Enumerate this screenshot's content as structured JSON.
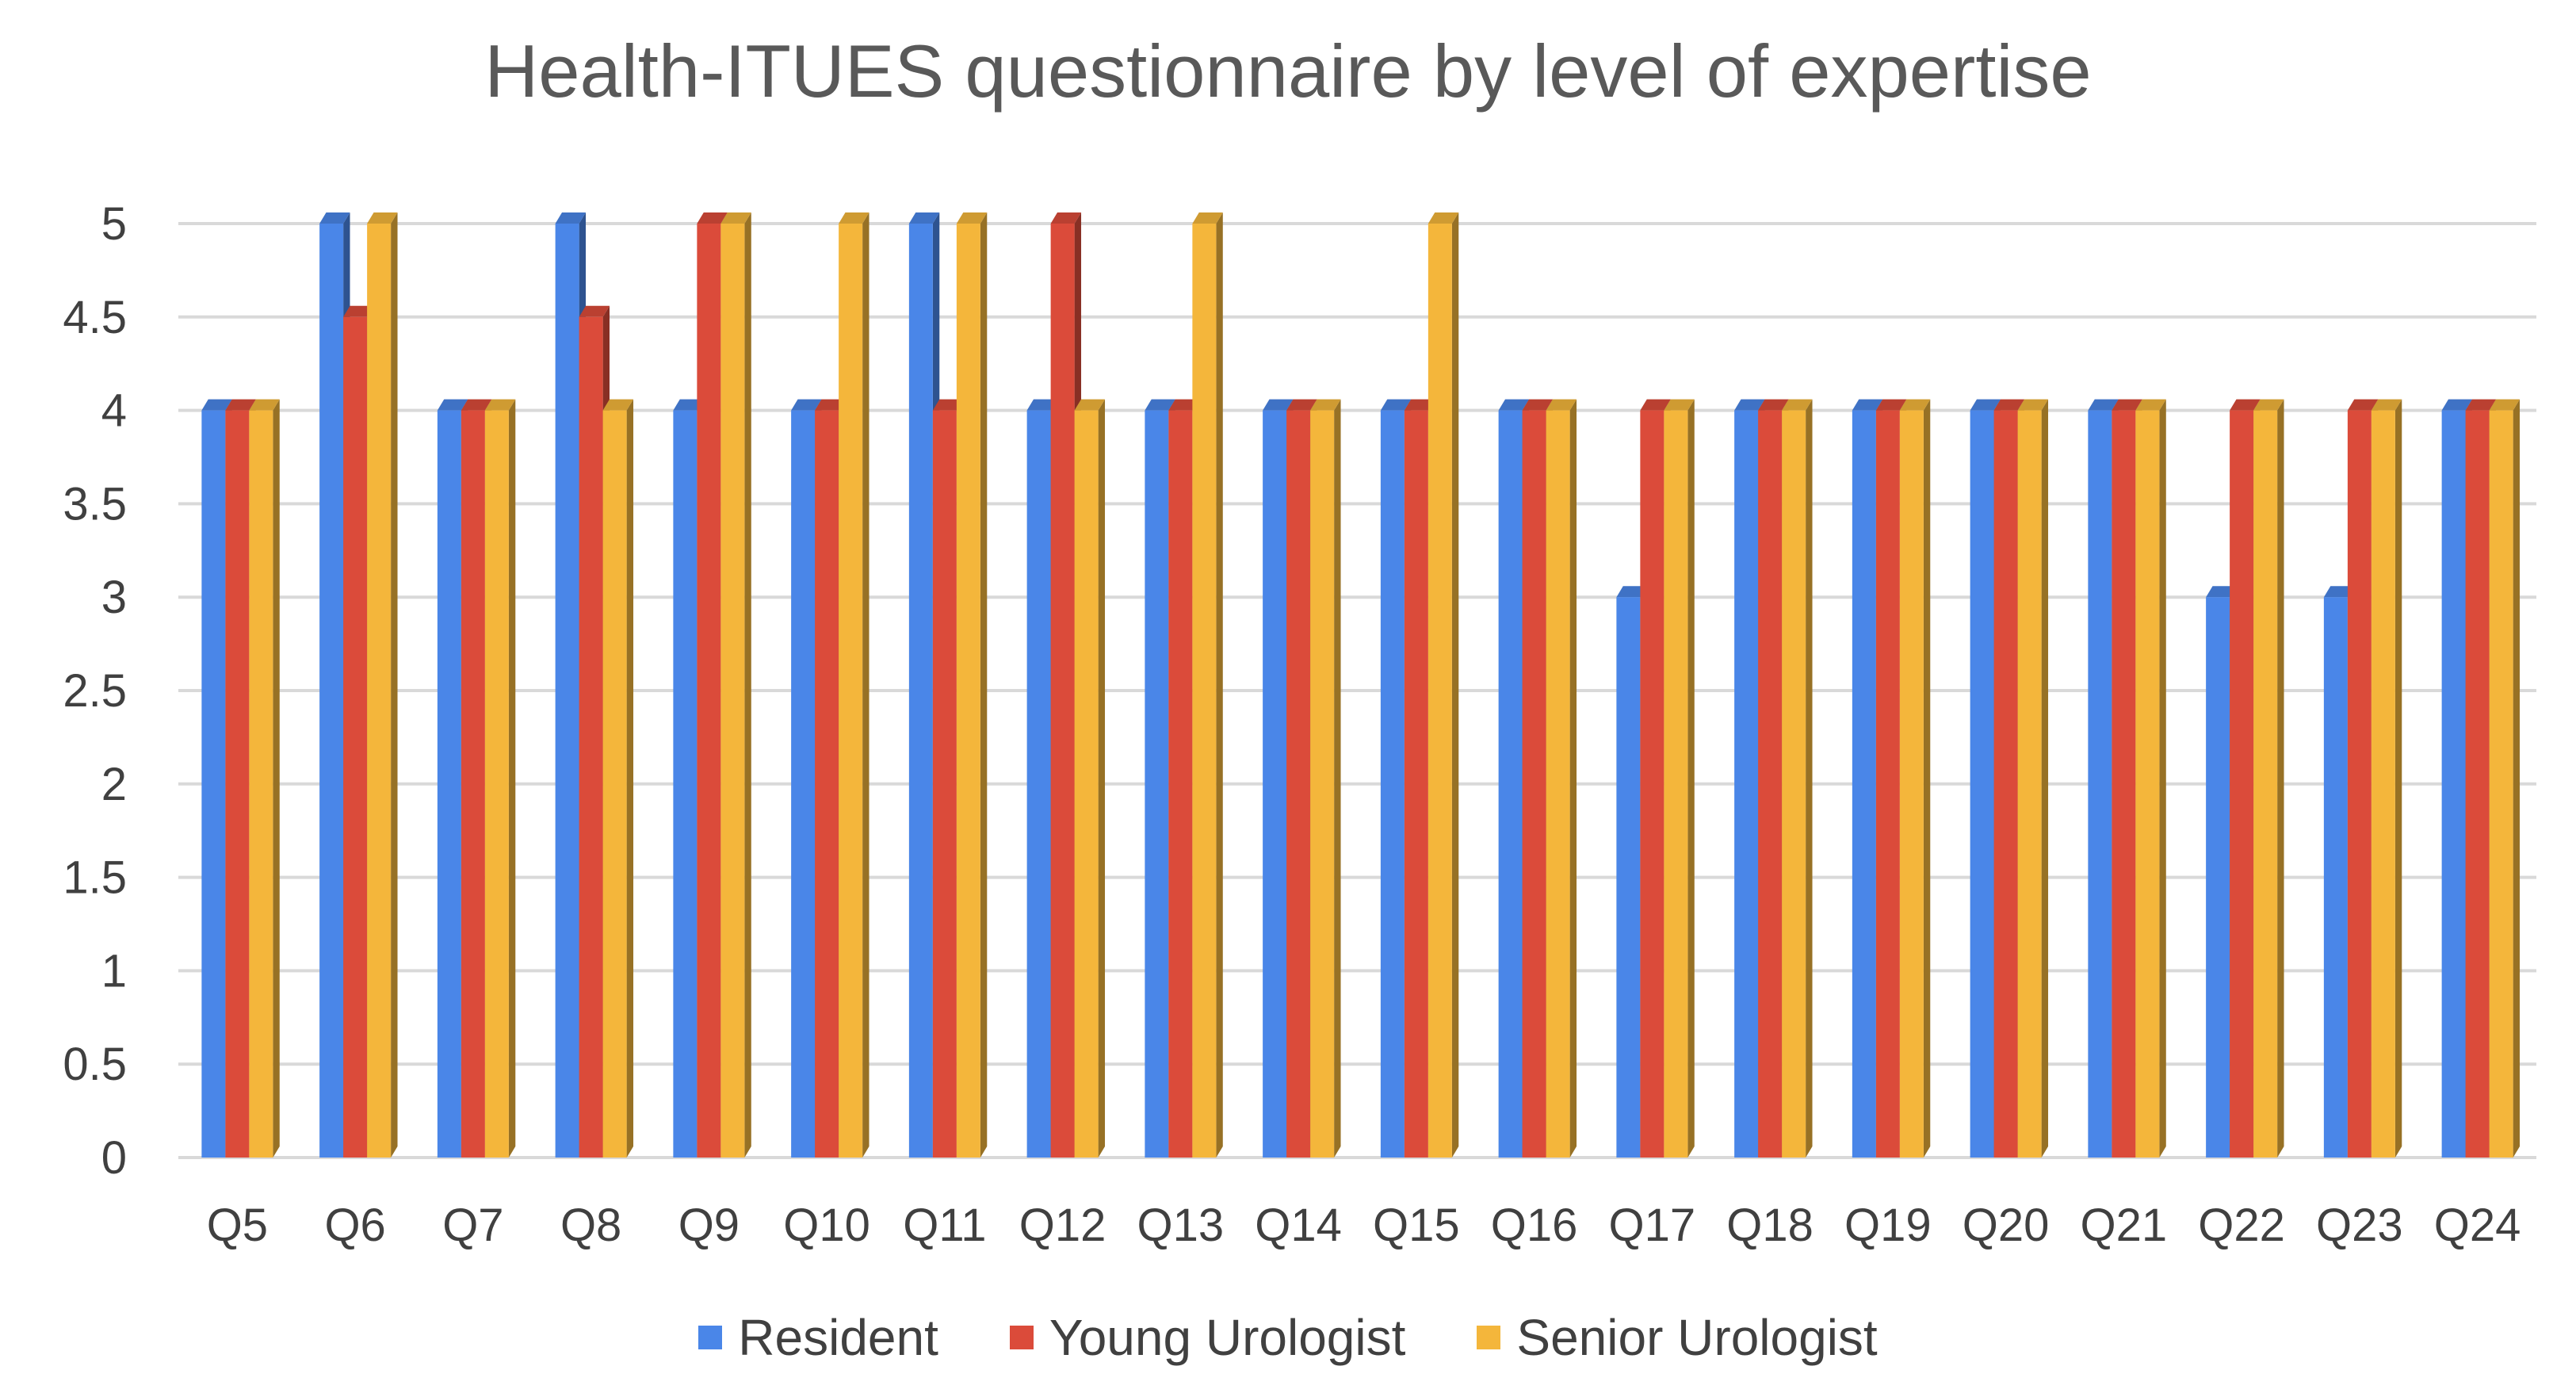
{
  "chart_data": {
    "type": "bar",
    "title": "Health-ITUES questionnaire by level of expertise",
    "xlabel": "",
    "ylabel": "",
    "ylim": [
      0,
      5
    ],
    "yticks": [
      "0",
      "0.5",
      "1",
      "1.5",
      "2",
      "2.5",
      "3",
      "3.5",
      "4",
      "4.5",
      "5"
    ],
    "grid": true,
    "legend_position": "bottom",
    "categories": [
      "Q5",
      "Q6",
      "Q7",
      "Q8",
      "Q9",
      "Q10",
      "Q11",
      "Q12",
      "Q13",
      "Q14",
      "Q15",
      "Q16",
      "Q17",
      "Q18",
      "Q19",
      "Q20",
      "Q21",
      "Q22",
      "Q23",
      "Q24"
    ],
    "series": [
      {
        "name": "Resident",
        "color": "#4A86E8",
        "values": [
          4,
          5,
          4,
          5,
          4,
          4,
          5,
          4,
          4,
          4,
          4,
          4,
          3,
          4,
          4,
          4,
          4,
          3,
          3,
          4
        ]
      },
      {
        "name": "Young Urologist",
        "color": "#DB4B3A",
        "values": [
          4,
          4.5,
          4,
          4.5,
          5,
          4,
          4,
          5,
          4,
          4,
          4,
          4,
          4,
          4,
          4,
          4,
          4,
          4,
          4,
          4
        ]
      },
      {
        "name": "Senior Urologist",
        "color": "#F4B63B",
        "values": [
          4,
          5,
          4,
          4,
          5,
          5,
          5,
          4,
          5,
          4,
          5,
          4,
          4,
          4,
          4,
          4,
          4,
          4,
          4,
          4
        ]
      }
    ]
  }
}
